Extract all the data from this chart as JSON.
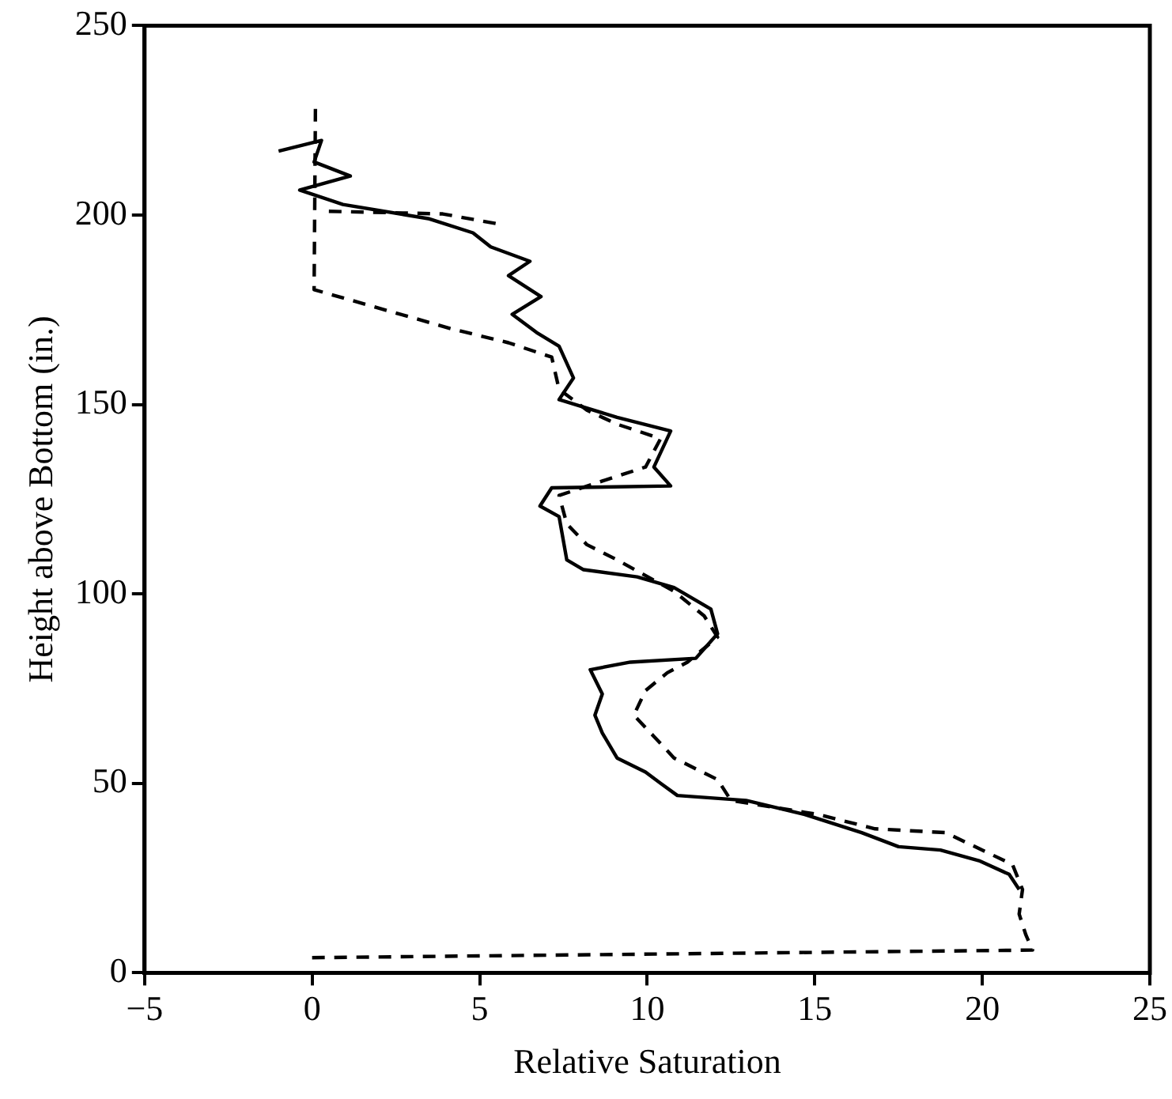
{
  "chart_data": {
    "type": "line",
    "xlabel": "Relative Saturation",
    "ylabel": "Height above Bottom (in.)",
    "xlim": [
      -5,
      25
    ],
    "xticks": [
      -5,
      0,
      5,
      10,
      15,
      20,
      25
    ],
    "ylim": [
      0,
      250
    ],
    "yticks": [
      0,
      50,
      100,
      150,
      200,
      250
    ],
    "grid": false,
    "legend": false,
    "marker": "none",
    "series": [
      {
        "color": "#000000",
        "line_style": "solid",
        "x": [
          21.1,
          20.8,
          19.9,
          18.75,
          17.5,
          16.4,
          14.7,
          12.95,
          10.9,
          10.4,
          9.95,
          9.1,
          8.66,
          8.44,
          8.66,
          8.3,
          9.5,
          11.45,
          12.1,
          11.9,
          10.8,
          9.7,
          8.1,
          7.6,
          7.37,
          6.8,
          7.15,
          10.7,
          10.2,
          10.7,
          9.1,
          7.37,
          7.8,
          7.37,
          6.7,
          5.97,
          6.83,
          5.86,
          6.5,
          5.33,
          4.8,
          3.5,
          0.92,
          -0.37,
          1.14,
          0.06,
          0.28,
          -1.0
        ],
        "values": [
          22,
          26,
          29.6,
          32.4,
          33.3,
          37,
          41.8,
          45.5,
          46.8,
          50,
          53,
          56.7,
          63.3,
          68,
          73.6,
          80,
          82,
          83,
          89.5,
          96,
          101.7,
          104.5,
          106.4,
          109,
          120.4,
          123.2,
          128,
          128.5,
          133.5,
          143,
          146.6,
          151.3,
          157,
          165.4,
          169,
          173.8,
          178.5,
          184,
          187.8,
          191.6,
          195.3,
          199,
          202.8,
          206.6,
          210.3,
          214,
          219.7,
          216.9
        ]
      },
      {
        "color": "#000000",
        "line_style": "dashed",
        "x": [
          0,
          21.5,
          21.3,
          21.1,
          21.2,
          20.9,
          18.9,
          16.8,
          15.1,
          12.5,
          12.1,
          10.8,
          10.2,
          9.6,
          9.95,
          10.6,
          11.2,
          12.1,
          11.7,
          10.8,
          9.1,
          8.2,
          7.6,
          7.37,
          8.66,
          9.95,
          10.4,
          9.1,
          8.2,
          7.37,
          7.15,
          5.86,
          4.15,
          0.06,
          0.1,
          0.3,
          0.5,
          3.9,
          5.65
        ],
        "values": [
          4,
          6,
          10,
          15.5,
          22,
          28.6,
          37,
          38,
          41.8,
          45.5,
          51,
          56.7,
          62.4,
          68,
          74.5,
          79.2,
          82,
          88.6,
          94.2,
          100.7,
          109,
          113,
          118.5,
          126,
          129.8,
          133.5,
          141,
          144.8,
          148.5,
          154,
          162.5,
          166.3,
          170,
          180.3,
          229,
          null,
          201,
          200.3,
          197.5
        ]
      }
    ]
  }
}
